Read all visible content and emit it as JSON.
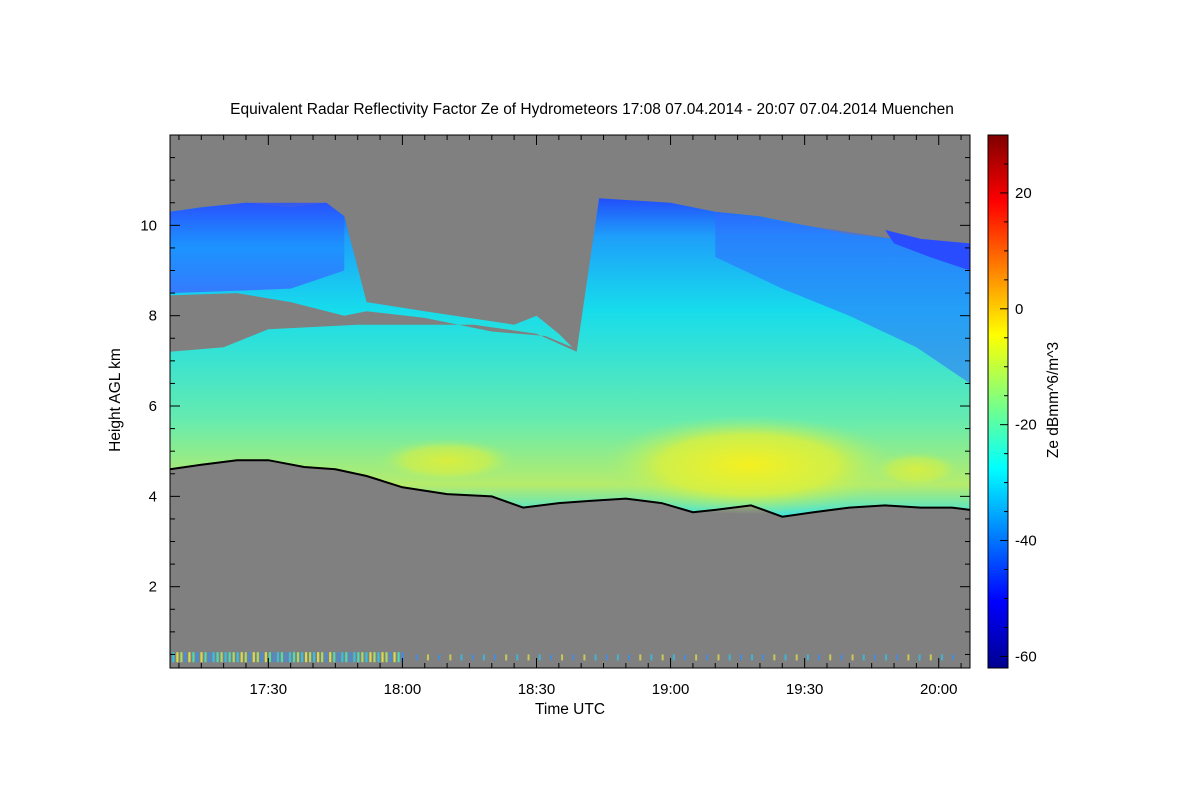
{
  "chart_data": {
    "type": "heatmap",
    "title": "Equivalent Radar Reflectivity Factor Ze of Hydrometeors   17:08 07.04.2014 - 20:07 07.04.2014 Muenchen",
    "xlabel": "Time UTC",
    "ylabel": "Height AGL km",
    "colorbar_label": "Ze dBmm^6/m^3",
    "x_range_min": [
      1028,
      1207
    ],
    "ylim": [
      0.2,
      12.0
    ],
    "zlim": [
      -62,
      30
    ],
    "x_ticks": [
      {
        "label": "17:30",
        "value": 1050
      },
      {
        "label": "18:00",
        "value": 1080
      },
      {
        "label": "18:30",
        "value": 1110
      },
      {
        "label": "19:00",
        "value": 1140
      },
      {
        "label": "19:30",
        "value": 1170
      },
      {
        "label": "20:00",
        "value": 1200
      }
    ],
    "y_ticks": [
      2,
      4,
      6,
      8,
      10
    ],
    "colorbar_ticks": [
      -60,
      -40,
      -20,
      0,
      20
    ],
    "colormap": "jet",
    "background_color": "#808080",
    "cloud_base_line_color": "#000000",
    "cloud_top_km": [
      [
        1028,
        10.3
      ],
      [
        1035,
        10.4
      ],
      [
        1045,
        10.5
      ],
      [
        1055,
        10.4
      ],
      [
        1063,
        10.5
      ],
      [
        1067,
        10.2
      ],
      [
        1072,
        8.3
      ],
      [
        1085,
        8.1
      ],
      [
        1105,
        7.8
      ],
      [
        1110,
        8.0
      ],
      [
        1115,
        7.6
      ],
      [
        1119,
        7.2
      ],
      [
        1124,
        10.6
      ],
      [
        1140,
        10.5
      ],
      [
        1150,
        10.3
      ],
      [
        1160,
        10.2
      ],
      [
        1170,
        10.0
      ],
      [
        1180,
        9.8
      ],
      [
        1190,
        9.7
      ],
      [
        1200,
        9.6
      ],
      [
        1207,
        9.5
      ]
    ],
    "cloud_base_km": [
      [
        1028,
        4.6
      ],
      [
        1035,
        4.7
      ],
      [
        1043,
        4.8
      ],
      [
        1050,
        4.8
      ],
      [
        1058,
        4.65
      ],
      [
        1065,
        4.6
      ],
      [
        1072,
        4.45
      ],
      [
        1080,
        4.2
      ],
      [
        1090,
        4.05
      ],
      [
        1100,
        4.0
      ],
      [
        1107,
        3.75
      ],
      [
        1115,
        3.85
      ],
      [
        1122,
        3.9
      ],
      [
        1130,
        3.95
      ],
      [
        1138,
        3.85
      ],
      [
        1145,
        3.65
      ],
      [
        1150,
        3.7
      ],
      [
        1158,
        3.8
      ],
      [
        1165,
        3.55
      ],
      [
        1172,
        3.65
      ],
      [
        1180,
        3.75
      ],
      [
        1188,
        3.8
      ],
      [
        1196,
        3.75
      ],
      [
        1203,
        3.75
      ],
      [
        1207,
        3.7
      ]
    ],
    "reflectivity_max_region": {
      "time_min": [
        1140,
        1175
      ],
      "height_km": [
        4.2,
        5.2
      ],
      "ze_dbz": -12
    }
  }
}
